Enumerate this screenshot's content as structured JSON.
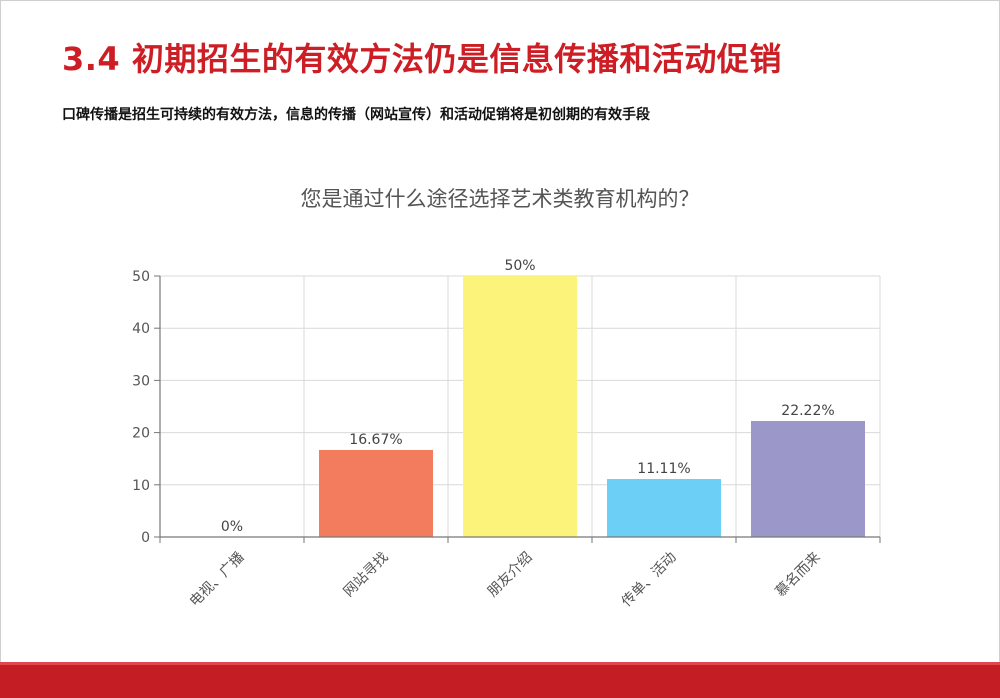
{
  "slide": {
    "title": "3.4 初期招生的有效方法仍是信息传播和活动促销",
    "subtitle": "口碑传播是招生可持续的有效方法，信息的传播（网站宣传）和活动促销将是初创期的有效手段"
  },
  "colors": {
    "title_red": "#cc1e24",
    "bottom_bar": "#c41e24"
  },
  "chart_data": {
    "type": "bar",
    "title": "您是通过什么途径选择艺术类教育机构的？",
    "categories": [
      "电视、广播",
      "网站寻找",
      "朋友介绍",
      "传单、活动",
      "慕名而来"
    ],
    "values": [
      0,
      16.67,
      50,
      11.11,
      22.22
    ],
    "data_labels": [
      "0%",
      "16.67%",
      "50%",
      "11.11%",
      "22.22%"
    ],
    "bar_colors": [
      "#8cc0e8",
      "#f27c5d",
      "#fcf47a",
      "#6ccff6",
      "#9b97c9"
    ],
    "ylim": [
      0,
      50
    ],
    "yticks": [
      0,
      10,
      20,
      30,
      40,
      50
    ],
    "xlabel": "",
    "ylabel": "",
    "grid": true,
    "legend": "none"
  }
}
